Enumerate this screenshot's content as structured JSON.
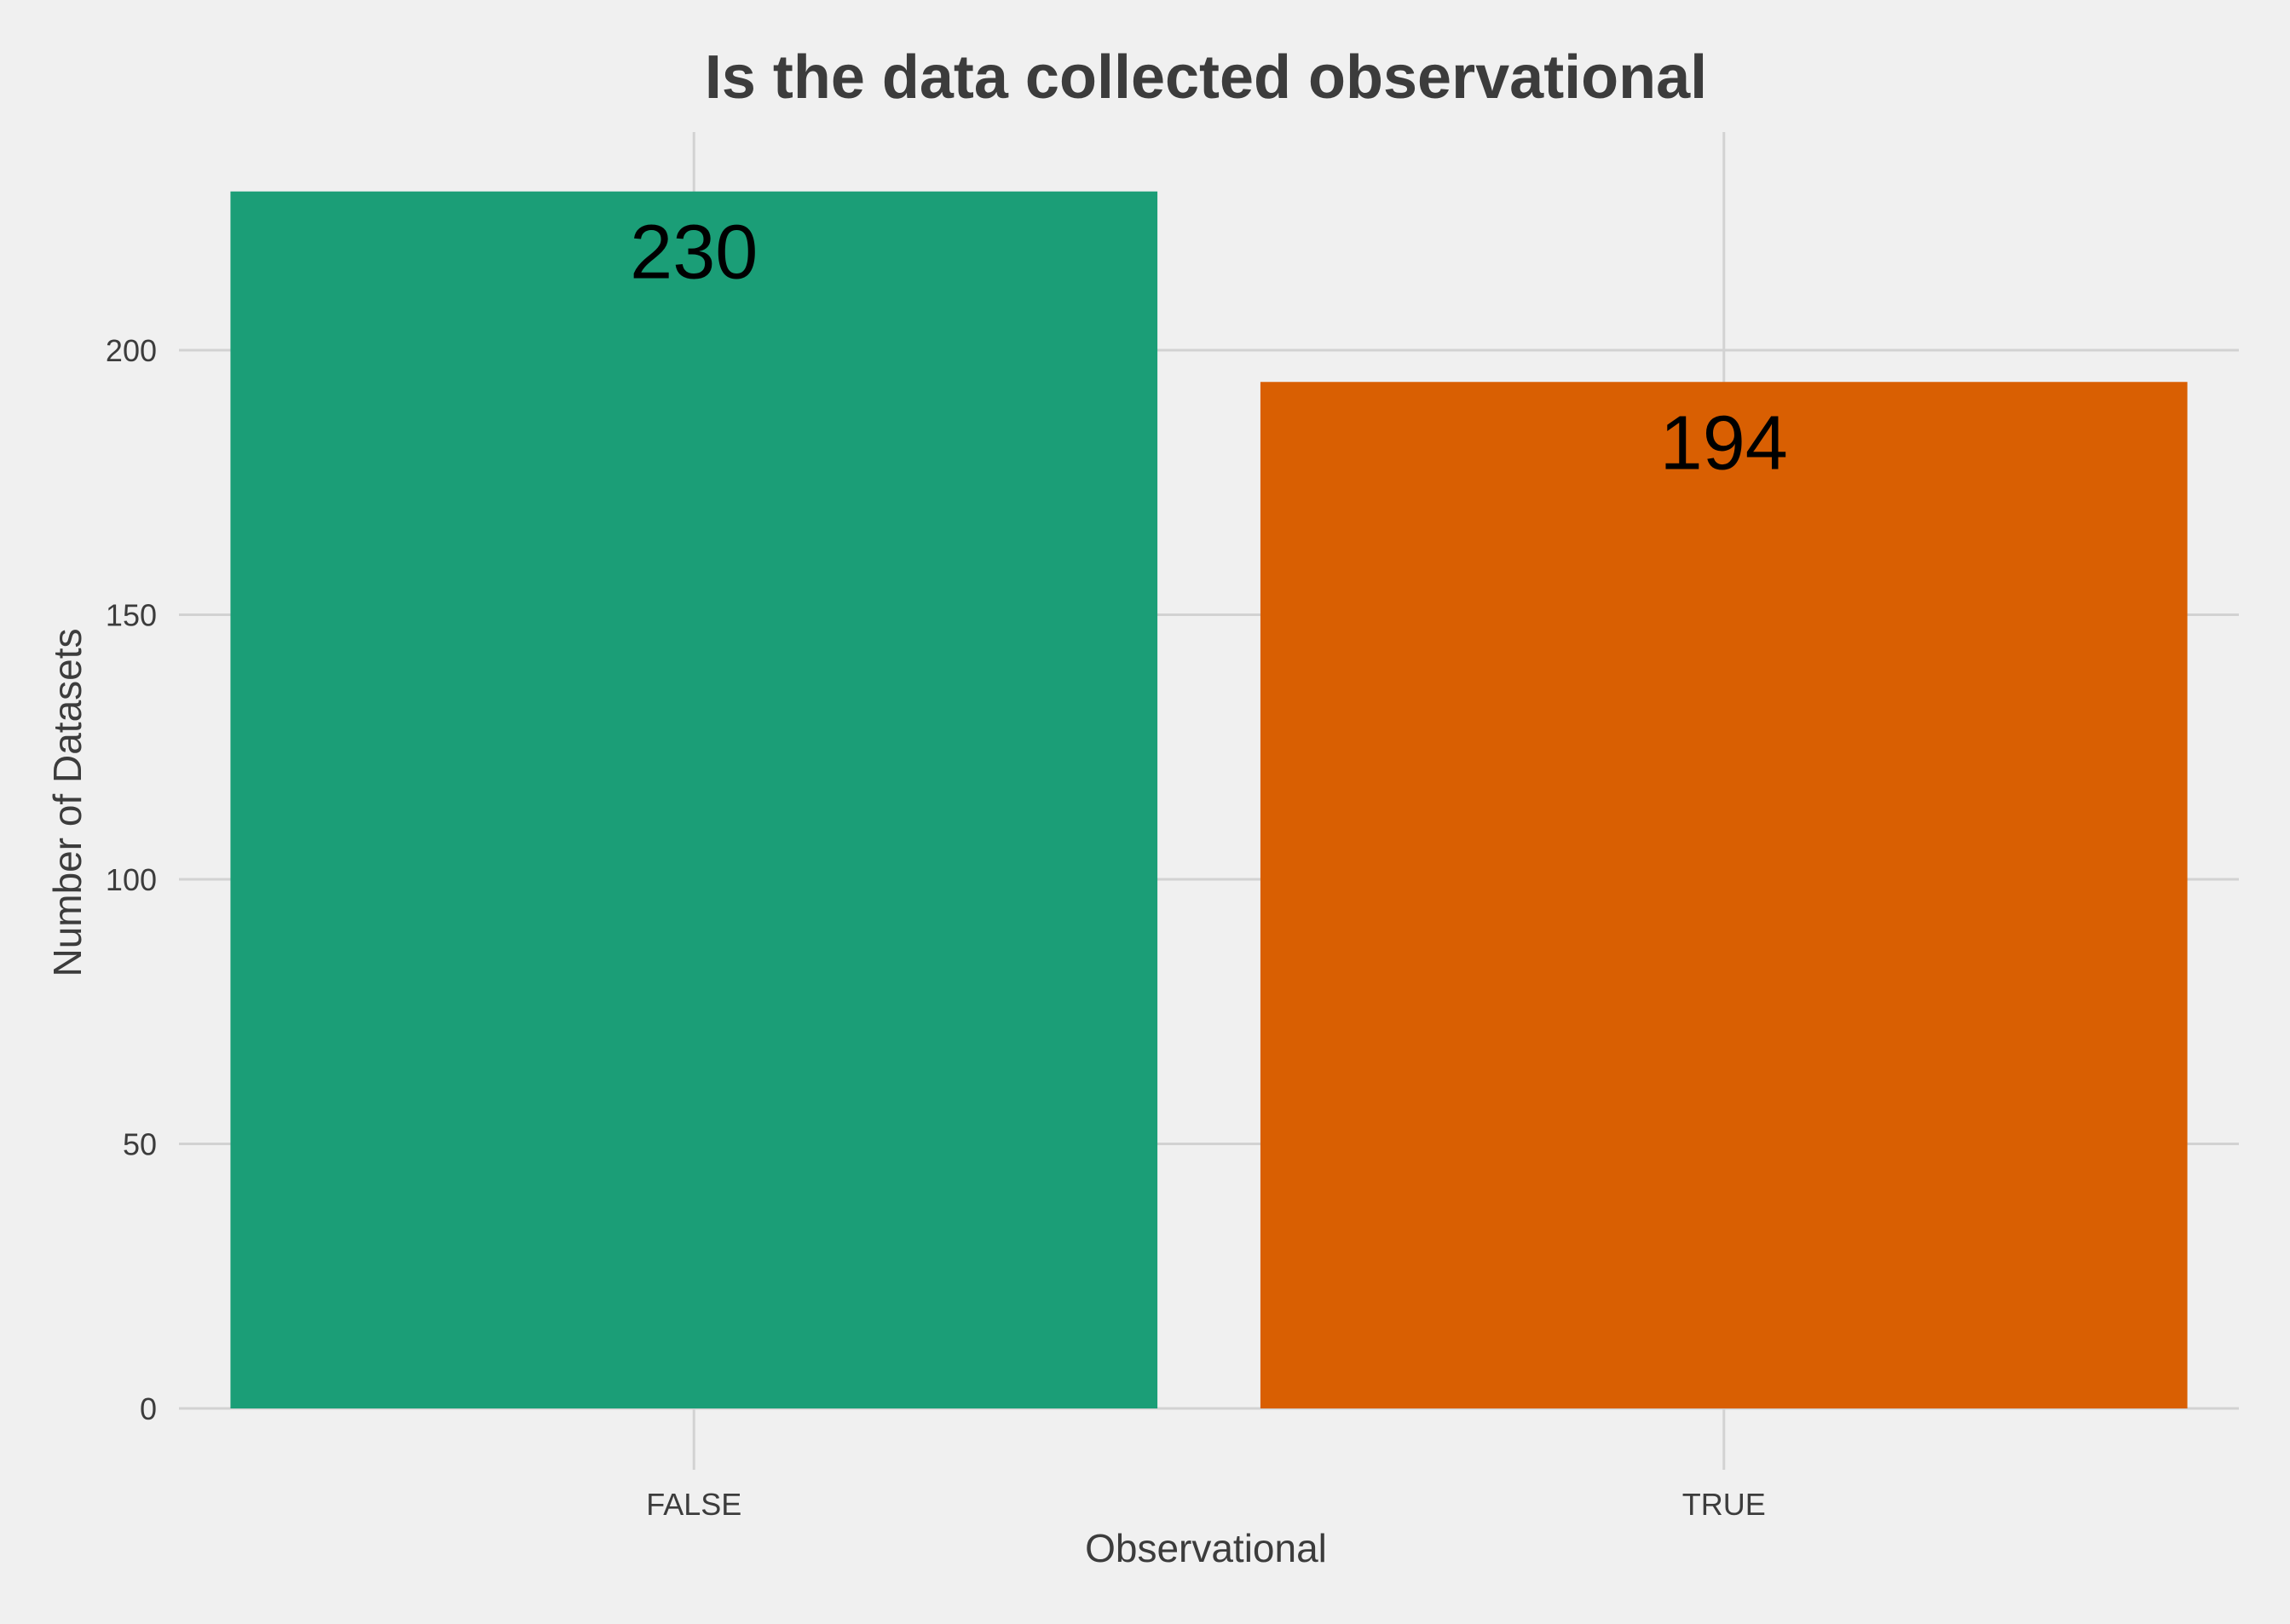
{
  "chart_data": {
    "type": "bar",
    "title": "Is the data collected observational",
    "xlabel": "Observational",
    "ylabel": "Number of Datasets",
    "categories": [
      "FALSE",
      "TRUE"
    ],
    "values": [
      230,
      194
    ],
    "data_labels": [
      "230",
      "194"
    ],
    "bar_colors": [
      "#1b9e77",
      "#d95f02"
    ],
    "ylim": [
      0,
      246
    ],
    "yticks": [
      0,
      50,
      100,
      150,
      200
    ],
    "ytick_labels": [
      "0",
      "50",
      "100",
      "150",
      "200"
    ],
    "grid": true,
    "legend": "none"
  }
}
